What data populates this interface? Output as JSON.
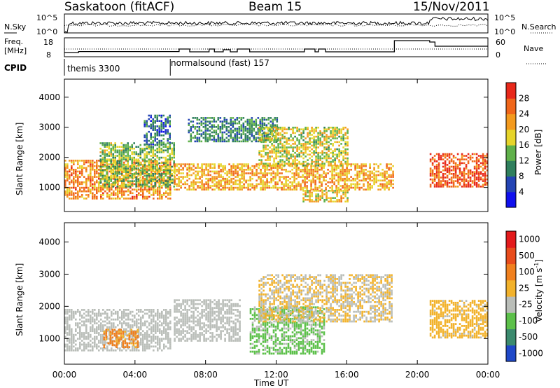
{
  "header": {
    "station": "Saskatoon (fitACF)",
    "beam": "Beam 15",
    "date": "15/Nov/2011"
  },
  "strip": {
    "left": {
      "nsky_label": "N.Sky",
      "nsky_top": "10^5",
      "nsky_bottom": "10^0",
      "freq_label_1": "Freq.",
      "freq_label_2": "[MHz]",
      "freq_top": "18",
      "freq_bottom": "8",
      "cpid_label": "CPID"
    },
    "right": {
      "nsearch_top": "10^5",
      "nsearch_bottom": "10^0",
      "nsearch_label": "N.Search",
      "nave_top": "60",
      "nave_bottom": "0",
      "nave_label": "Nave"
    },
    "cpid_segments": [
      {
        "start_h": 0.0,
        "end_h": 6.0,
        "label": "themis 3300"
      },
      {
        "start_h": 6.0,
        "end_h": 24.0,
        "label": "normalsound (fast) 157"
      }
    ],
    "freq_steps_h": [
      [
        0.0,
        9.5
      ],
      [
        0.8,
        10.2
      ],
      [
        6.2,
        10.2
      ],
      [
        6.5,
        12.0
      ],
      [
        7.1,
        10.0
      ],
      [
        8.2,
        12.0
      ],
      [
        8.5,
        10.0
      ],
      [
        9.0,
        11.5
      ],
      [
        9.4,
        10.0
      ],
      [
        9.8,
        12.0
      ],
      [
        10.5,
        10.0
      ],
      [
        13.6,
        12.0
      ],
      [
        14.2,
        10.0
      ],
      [
        14.4,
        12.0
      ],
      [
        14.8,
        10.0
      ],
      [
        18.7,
        18.0
      ],
      [
        20.7,
        17.0
      ],
      [
        21.0,
        14.0
      ],
      [
        24.0,
        14.0
      ]
    ]
  },
  "chart_data": [
    {
      "type": "heatmap",
      "title": "",
      "xlabel": "Time UT",
      "ylabel": "Slant Range [km]",
      "xlim": [
        0,
        24
      ],
      "ylim": [
        200,
        4600
      ],
      "x_ticks": [
        "00:00",
        "04:00",
        "08:00",
        "12:00",
        "16:00",
        "20:00",
        "00:00"
      ],
      "y_ticks": [
        1000,
        2000,
        3000,
        4000
      ],
      "colorbar": {
        "label": "Power [dB]",
        "range": [
          0,
          30
        ],
        "ticks": [
          "28",
          "24",
          "20",
          "16",
          "12",
          "8",
          "4"
        ],
        "colors": [
          "#1010ee",
          "#2444b4",
          "#2f7f5d",
          "#5fb04a",
          "#e6d42a",
          "#f39a1e",
          "#f0661a",
          "#e8281a"
        ]
      },
      "data_gap_h": [
        18.7,
        20.7
      ],
      "echo_bands": [
        {
          "t0": 0.0,
          "t1": 6.0,
          "r0": 600,
          "r1": 1900,
          "value": 22
        },
        {
          "t0": 2.0,
          "t1": 6.2,
          "r0": 1000,
          "r1": 2500,
          "value": 14
        },
        {
          "t0": 4.5,
          "t1": 6.0,
          "r0": 2400,
          "r1": 3400,
          "value": 8
        },
        {
          "t0": 6.2,
          "t1": 18.6,
          "r0": 900,
          "r1": 1800,
          "value": 20
        },
        {
          "t0": 7.0,
          "t1": 12.0,
          "r0": 2500,
          "r1": 3300,
          "value": 10
        },
        {
          "t0": 11.0,
          "t1": 16.0,
          "r0": 1700,
          "r1": 3000,
          "value": 16
        },
        {
          "t0": 13.5,
          "t1": 16.0,
          "r0": 500,
          "r1": 900,
          "value": 18
        },
        {
          "t0": 20.7,
          "t1": 24.0,
          "r0": 1000,
          "r1": 2100,
          "value": 26
        }
      ]
    },
    {
      "type": "heatmap",
      "title": "",
      "xlabel": "Time UT",
      "ylabel": "Slant Range [km]",
      "xlim": [
        0,
        24
      ],
      "ylim": [
        200,
        4600
      ],
      "x_ticks": [
        "00:00",
        "04:00",
        "08:00",
        "12:00",
        "16:00",
        "20:00",
        "00:00"
      ],
      "y_ticks": [
        1000,
        2000,
        3000,
        4000
      ],
      "colorbar": {
        "label": "Velocity [m s^-1]",
        "range": [
          -1000,
          1000
        ],
        "ticks": [
          "1000",
          "500",
          "100",
          "25",
          "-25",
          "-100",
          "-500",
          "-1000"
        ],
        "colors": [
          "#1f48c8",
          "#3b8a6e",
          "#5cc04a",
          "#b9bdb8",
          "#f2b22b",
          "#f0801e",
          "#e84c1c",
          "#e31a1c"
        ]
      },
      "data_gap_h": [
        18.7,
        20.7
      ],
      "echo_bands": [
        {
          "t0": 0.0,
          "t1": 6.0,
          "r0": 600,
          "r1": 1900,
          "value": -25
        },
        {
          "t0": 2.2,
          "t1": 4.2,
          "r0": 700,
          "r1": 1300,
          "value": 300
        },
        {
          "t0": 6.2,
          "t1": 10.0,
          "r0": 900,
          "r1": 2200,
          "value": -60
        },
        {
          "t0": 10.5,
          "t1": 14.7,
          "r0": 500,
          "r1": 2000,
          "value": -300
        },
        {
          "t0": 11.0,
          "t1": 18.6,
          "r0": 1500,
          "r1": 3000,
          "value": 0
        },
        {
          "t0": 20.7,
          "t1": 24.0,
          "r0": 1000,
          "r1": 2200,
          "value": 10
        }
      ]
    }
  ]
}
